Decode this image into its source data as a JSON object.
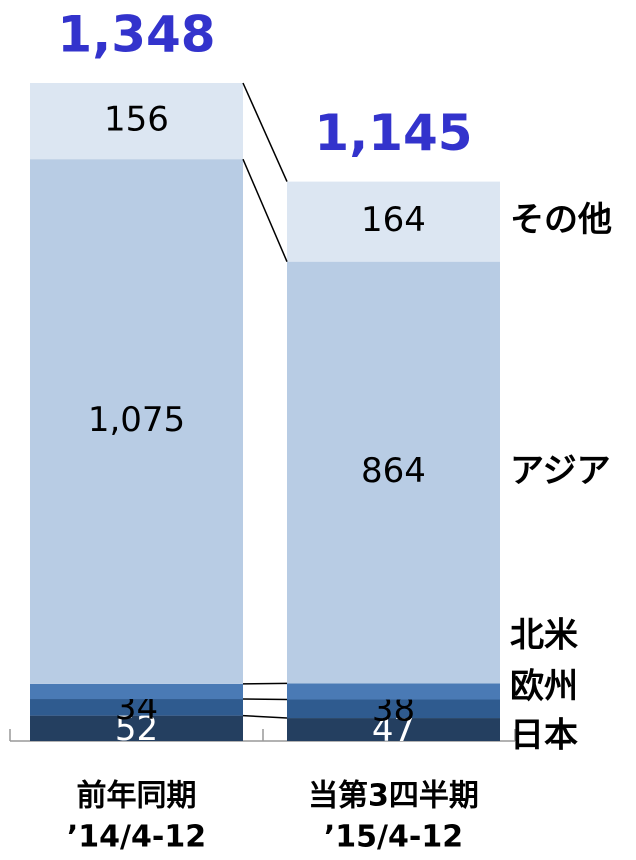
{
  "chart_data": {
    "type": "stacked_bar",
    "categories": [
      "前年同期",
      "当第3四半期"
    ],
    "category_periods": [
      "’14/4-12",
      "’15/4-12"
    ],
    "series": [
      {
        "name": "日本",
        "color": "#243f60",
        "label_color": "#ffffff",
        "values": [
          52,
          47
        ]
      },
      {
        "name": "欧州",
        "color": "#2f5b8f",
        "label_color": "#000000",
        "values": [
          34,
          38
        ]
      },
      {
        "name": "北米",
        "color": "#4a7ab5",
        "label_color": "#000000",
        "values": [
          31,
          33
        ]
      },
      {
        "name": "アジア",
        "color": "#b8cce4",
        "label_color": "#000000",
        "values": [
          1075,
          864
        ],
        "value_labels": [
          "1,075",
          "864"
        ]
      },
      {
        "name": "その他",
        "color": "#dce6f2",
        "label_color": "#000000",
        "values": [
          156,
          164
        ]
      }
    ],
    "totals": [
      1348,
      1145
    ],
    "total_labels": [
      "1,348",
      "1,145"
    ],
    "total_color": "#3333cc"
  }
}
